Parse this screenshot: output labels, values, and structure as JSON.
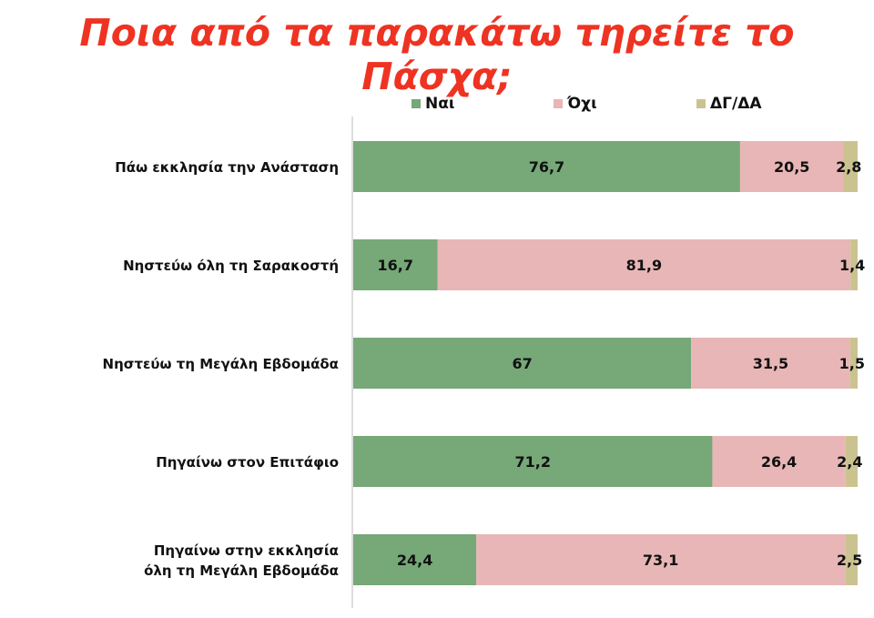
{
  "title": "Ποια από τα παρακάτω τηρείτε το Πάσχα;",
  "chart_data": {
    "type": "bar",
    "orientation": "horizontal-stacked-100",
    "title": "Ποια από τα παρακάτω τηρείτε το Πάσχα;",
    "categories": [
      [
        "Πάω εκκλησία την Ανάσταση"
      ],
      [
        "Νηστεύω όλη τη Σαρακοστή"
      ],
      [
        "Νηστεύω τη Μεγάλη Εβδομάδα"
      ],
      [
        "Πηγαίνω στον Επιτάφιο"
      ],
      [
        "Πηγαίνω στην εκκλησία",
        "όλη τη Μεγάλη Εβδομάδα"
      ]
    ],
    "series": [
      {
        "name": "Ναι",
        "color": "#76a878",
        "values": [
          76.7,
          16.7,
          67,
          71.2,
          24.4
        ],
        "labels": [
          "76,7",
          "16,7",
          "67",
          "71,2",
          "24,4"
        ]
      },
      {
        "name": "Όχι",
        "color": "#e8b6b6",
        "values": [
          20.5,
          81.9,
          31.5,
          26.4,
          73.1
        ],
        "labels": [
          "20,5",
          "81,9",
          "31,5",
          "26,4",
          "73,1"
        ]
      },
      {
        "name": "ΔΓ/ΔΑ",
        "color": "#cbc38f",
        "values": [
          2.8,
          1.4,
          1.5,
          2.4,
          2.5
        ],
        "labels": [
          "2,8",
          "1,4",
          "1,5",
          "2,4",
          "2,5"
        ]
      }
    ],
    "xlim": [
      0,
      100
    ],
    "legend": "top"
  }
}
